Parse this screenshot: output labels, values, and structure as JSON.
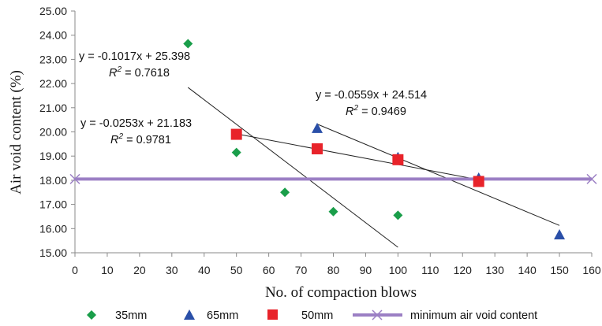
{
  "chart_data": {
    "type": "scatter",
    "xlabel": "No. of compaction blows",
    "ylabel": "Air void content (%)",
    "xlim": [
      0,
      160
    ],
    "ylim": [
      15.0,
      25.0
    ],
    "xticks": [
      "0",
      "10",
      "20",
      "30",
      "40",
      "50",
      "60",
      "70",
      "80",
      "90",
      "100",
      "110",
      "120",
      "130",
      "140",
      "150",
      "160"
    ],
    "yticks": [
      "15.00",
      "16.00",
      "17.00",
      "18.00",
      "19.00",
      "20.00",
      "21.00",
      "22.00",
      "23.00",
      "24.00",
      "25.00"
    ],
    "grid": false,
    "legend_position": "bottom",
    "series": [
      {
        "name": "35mm",
        "marker": "diamond",
        "color": "#1a9e4a",
        "points": [
          [
            35,
            23.65
          ],
          [
            50,
            19.15
          ],
          [
            65,
            17.5
          ],
          [
            80,
            16.7
          ],
          [
            100,
            16.55
          ]
        ],
        "trendline": {
          "slope": -0.1017,
          "intercept": 25.398,
          "x_range": [
            35,
            100
          ],
          "equation": "y = -0.1017x + 25.398",
          "r2_label": "R",
          "r2_value": " = 0.7618"
        }
      },
      {
        "name": "65mm",
        "marker": "triangle",
        "color": "#2a4fa8",
        "points": [
          [
            75,
            20.15
          ],
          [
            100,
            18.95
          ],
          [
            125,
            18.1
          ],
          [
            150,
            15.75
          ]
        ],
        "trendline": {
          "slope": -0.0559,
          "intercept": 24.514,
          "x_range": [
            75,
            150
          ],
          "equation": "y = -0.0559x + 24.514",
          "r2_label": "R",
          "r2_value": " = 0.9469"
        }
      },
      {
        "name": "50mm",
        "marker": "square",
        "color": "#e8232a",
        "points": [
          [
            50,
            19.9
          ],
          [
            75,
            19.3
          ],
          [
            100,
            18.85
          ],
          [
            125,
            17.95
          ]
        ],
        "trendline": {
          "slope": -0.0253,
          "intercept": 21.183,
          "x_range": [
            50,
            125
          ],
          "equation": "y = -0.0253x + 21.183",
          "r2_label": "R",
          "r2_value": " = 0.9781"
        }
      },
      {
        "name": "minimum air void content",
        "marker": "x",
        "color": "#9b7fc4",
        "points": [
          [
            0,
            18.05
          ],
          [
            160,
            18.05
          ]
        ]
      }
    ]
  }
}
